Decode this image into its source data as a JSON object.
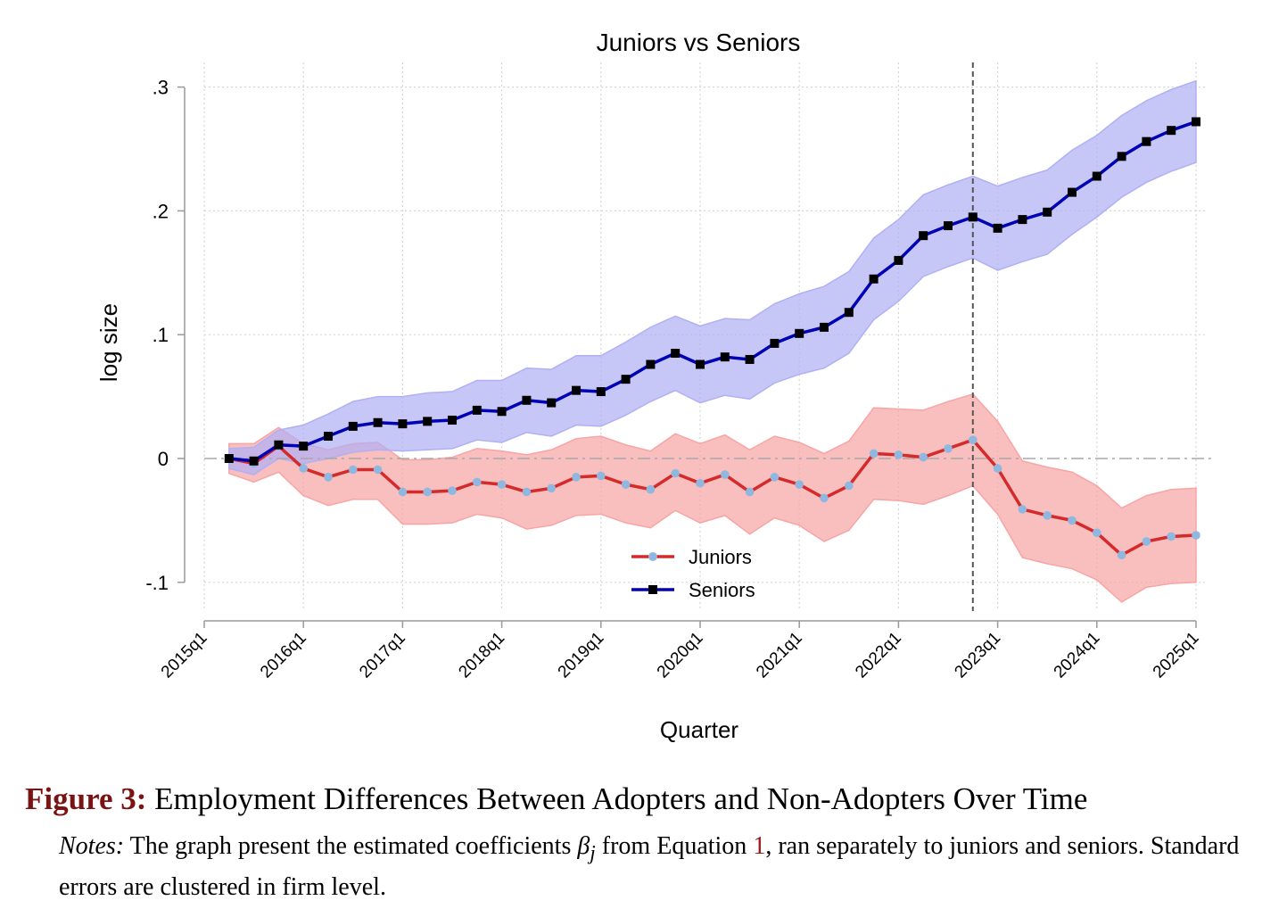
{
  "chart_data": {
    "type": "line",
    "title": "Juniors vs Seniors",
    "xlabel": "Quarter",
    "ylabel": "log size",
    "ylim": [
      -0.13,
      0.31
    ],
    "yticks": [
      {
        "value": 0.3,
        "label": ".3"
      },
      {
        "value": 0.2,
        "label": ".2"
      },
      {
        "value": 0.1,
        "label": ".1"
      },
      {
        "value": 0,
        "label": "0"
      },
      {
        "value": -0.1,
        "label": "-.1"
      }
    ],
    "xticks": [
      {
        "value": 0,
        "label": "2015q1"
      },
      {
        "value": 4,
        "label": "2016q1"
      },
      {
        "value": 8,
        "label": "2017q1"
      },
      {
        "value": 12,
        "label": "2018q1"
      },
      {
        "value": 16,
        "label": "2019q1"
      },
      {
        "value": 20,
        "label": "2020q1"
      },
      {
        "value": 24,
        "label": "2021q1"
      },
      {
        "value": 28,
        "label": "2022q1"
      },
      {
        "value": 32,
        "label": "2023q1"
      },
      {
        "value": 36,
        "label": "2024q1"
      },
      {
        "value": 40,
        "label": "2025q1"
      }
    ],
    "x": [
      1,
      2,
      3,
      4,
      5,
      6,
      7,
      8,
      9,
      10,
      11,
      12,
      13,
      14,
      15,
      16,
      17,
      18,
      19,
      20,
      21,
      22,
      23,
      24,
      25,
      26,
      27,
      28,
      29,
      30,
      31,
      32,
      33,
      34,
      35,
      36,
      37,
      38,
      39,
      40
    ],
    "reference_x": 31,
    "series": [
      {
        "name": "Juniors",
        "color": "#d42a2a",
        "band_color": "#f7a5a5",
        "marker": "circle",
        "marker_color": "#8fb8e0",
        "values": [
          0.0,
          -0.004,
          0.01,
          -0.008,
          -0.015,
          -0.009,
          -0.009,
          -0.027,
          -0.027,
          -0.026,
          -0.019,
          -0.021,
          -0.027,
          -0.024,
          -0.015,
          -0.014,
          -0.021,
          -0.025,
          -0.012,
          -0.02,
          -0.013,
          -0.027,
          -0.015,
          -0.021,
          -0.032,
          -0.022,
          0.004,
          0.003,
          0.001,
          0.008,
          0.015,
          -0.008,
          -0.041,
          -0.046,
          -0.05,
          -0.06,
          -0.078,
          -0.067,
          -0.063,
          -0.062
        ],
        "lower": [
          -0.012,
          -0.019,
          -0.011,
          -0.03,
          -0.038,
          -0.033,
          -0.033,
          -0.053,
          -0.053,
          -0.052,
          -0.045,
          -0.048,
          -0.057,
          -0.054,
          -0.046,
          -0.045,
          -0.052,
          -0.056,
          -0.042,
          -0.052,
          -0.046,
          -0.061,
          -0.048,
          -0.054,
          -0.067,
          -0.058,
          -0.033,
          -0.034,
          -0.037,
          -0.03,
          -0.022,
          -0.045,
          -0.08,
          -0.085,
          -0.089,
          -0.098,
          -0.116,
          -0.104,
          -0.101,
          -0.1
        ],
        "upper": [
          0.012,
          0.012,
          0.025,
          0.012,
          0.007,
          0.012,
          0.013,
          -0.001,
          -0.001,
          0.001,
          0.008,
          0.006,
          0.003,
          0.007,
          0.016,
          0.018,
          0.011,
          0.006,
          0.02,
          0.012,
          0.019,
          0.007,
          0.018,
          0.013,
          0.004,
          0.014,
          0.041,
          0.04,
          0.039,
          0.046,
          0.052,
          0.03,
          -0.002,
          -0.007,
          -0.011,
          -0.022,
          -0.04,
          -0.03,
          -0.025,
          -0.024
        ]
      },
      {
        "name": "Seniors",
        "color": "#0000b4",
        "band_color": "#b0b0f4",
        "marker": "square",
        "marker_color": "#000000",
        "values": [
          0.0,
          -0.002,
          0.011,
          0.01,
          0.018,
          0.026,
          0.029,
          0.028,
          0.03,
          0.031,
          0.039,
          0.038,
          0.047,
          0.045,
          0.055,
          0.054,
          0.064,
          0.076,
          0.085,
          0.076,
          0.082,
          0.08,
          0.093,
          0.101,
          0.106,
          0.118,
          0.145,
          0.16,
          0.18,
          0.188,
          0.195,
          0.186,
          0.193,
          0.199,
          0.215,
          0.228,
          0.244,
          0.256,
          0.265,
          0.272
        ],
        "lower": [
          -0.008,
          -0.013,
          0.0,
          -0.004,
          0.0,
          0.005,
          0.007,
          0.006,
          0.007,
          0.008,
          0.015,
          0.013,
          0.021,
          0.018,
          0.027,
          0.026,
          0.035,
          0.046,
          0.055,
          0.045,
          0.051,
          0.048,
          0.061,
          0.068,
          0.073,
          0.085,
          0.112,
          0.127,
          0.147,
          0.155,
          0.162,
          0.152,
          0.159,
          0.165,
          0.181,
          0.195,
          0.211,
          0.223,
          0.232,
          0.239
        ],
        "upper": [
          0.008,
          0.009,
          0.023,
          0.027,
          0.036,
          0.046,
          0.05,
          0.05,
          0.053,
          0.054,
          0.063,
          0.063,
          0.073,
          0.072,
          0.083,
          0.083,
          0.094,
          0.106,
          0.115,
          0.107,
          0.113,
          0.112,
          0.125,
          0.133,
          0.139,
          0.151,
          0.178,
          0.193,
          0.213,
          0.221,
          0.228,
          0.22,
          0.227,
          0.233,
          0.249,
          0.261,
          0.277,
          0.289,
          0.298,
          0.305
        ]
      }
    ],
    "legend_position": "bottom-center",
    "grid": true
  },
  "caption": {
    "figure_label": "Figure 3:",
    "title": "Employment Differences Between Adopters and Non-Adopters Over Time"
  },
  "notes": {
    "label": "Notes:",
    "text_before": "The graph present the estimated coefficients",
    "symbol": "β",
    "subscript": "j",
    "text_middle": "from Equation",
    "equation_ref": "1",
    "text_after": ", ran separately to juniors and seniors. Standard errors are clustered in firm level."
  }
}
